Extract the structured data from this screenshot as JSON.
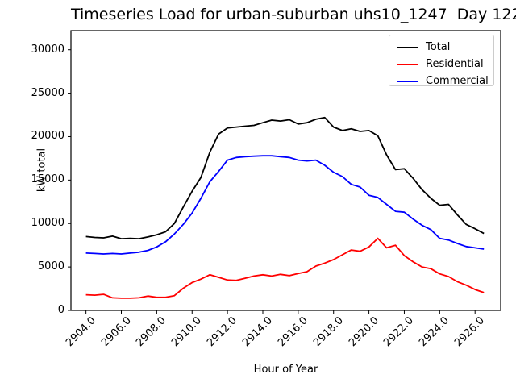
{
  "title": "Timeseries Load for urban-suburban uhs10_1247  Day 122",
  "chart_data": {
    "type": "line",
    "title": "Timeseries Load for urban-suburban uhs10_1247  Day 122",
    "xlabel": "Hour of Year",
    "ylabel": "kW total",
    "xlim": [
      2903.15,
      2927.45
    ],
    "ylim": [
      0,
      32200
    ],
    "grid": false,
    "legend_position": "upper right",
    "x_ticks": [
      2904,
      2906,
      2908,
      2910,
      2912,
      2914,
      2916,
      2918,
      2920,
      2922,
      2924,
      2926
    ],
    "x_tick_labels": [
      "2904.0",
      "2906.0",
      "2908.0",
      "2910.0",
      "2912.0",
      "2914.0",
      "2916.0",
      "2918.0",
      "2920.0",
      "2922.0",
      "2924.0",
      "2926.0"
    ],
    "y_ticks": [
      0,
      5000,
      10000,
      15000,
      20000,
      25000,
      30000
    ],
    "y_tick_labels": [
      "0",
      "5000",
      "10000",
      "15000",
      "20000",
      "25000",
      "30000"
    ],
    "x": [
      2904.0,
      2904.5,
      2905.0,
      2905.5,
      2906.0,
      2906.5,
      2907.0,
      2907.5,
      2908.0,
      2908.5,
      2909.0,
      2909.5,
      2910.0,
      2910.5,
      2911.0,
      2911.5,
      2912.0,
      2912.5,
      2913.0,
      2913.5,
      2914.0,
      2914.5,
      2915.0,
      2915.5,
      2916.0,
      2916.5,
      2917.0,
      2917.5,
      2918.0,
      2918.5,
      2919.0,
      2919.5,
      2920.0,
      2920.5,
      2921.0,
      2921.5,
      2922.0,
      2922.5,
      2923.0,
      2923.5,
      2924.0,
      2924.5,
      2925.0,
      2925.5,
      2926.0,
      2926.5
    ],
    "series": [
      {
        "name": "Total",
        "color": "#000000",
        "values": [
          8500,
          8400,
          8350,
          8550,
          8250,
          8300,
          8250,
          8450,
          8700,
          9050,
          10000,
          11900,
          13700,
          15300,
          18200,
          20300,
          21000,
          21100,
          21200,
          21300,
          21600,
          21900,
          21800,
          21950,
          21450,
          21600,
          22000,
          22200,
          21100,
          20700,
          20900,
          20600,
          20700,
          20100,
          17900,
          16200,
          16300,
          15200,
          13900,
          12900,
          12100,
          12200,
          11000,
          9900,
          9400,
          8850
        ]
      },
      {
        "name": "Residential",
        "color": "#ff0000",
        "values": [
          1800,
          1750,
          1850,
          1450,
          1400,
          1400,
          1450,
          1650,
          1500,
          1500,
          1700,
          2550,
          3200,
          3600,
          4100,
          3800,
          3500,
          3450,
          3700,
          3950,
          4100,
          3950,
          4150,
          4000,
          4250,
          4450,
          5100,
          5450,
          5850,
          6400,
          6950,
          6800,
          7300,
          8300,
          7200,
          7500,
          6300,
          5600,
          5000,
          4800,
          4200,
          3900,
          3300,
          2900,
          2400,
          2050
        ]
      },
      {
        "name": "Commercial",
        "color": "#0000ff",
        "values": [
          6600,
          6550,
          6500,
          6550,
          6500,
          6600,
          6700,
          6900,
          7300,
          7900,
          8800,
          9900,
          11200,
          12900,
          14800,
          16000,
          17300,
          17600,
          17700,
          17750,
          17800,
          17800,
          17700,
          17600,
          17300,
          17200,
          17300,
          16700,
          15900,
          15400,
          14500,
          14200,
          13250,
          13000,
          12200,
          11400,
          11300,
          10500,
          9800,
          9300,
          8300,
          8100,
          7700,
          7350,
          7200,
          7050
        ]
      }
    ]
  }
}
